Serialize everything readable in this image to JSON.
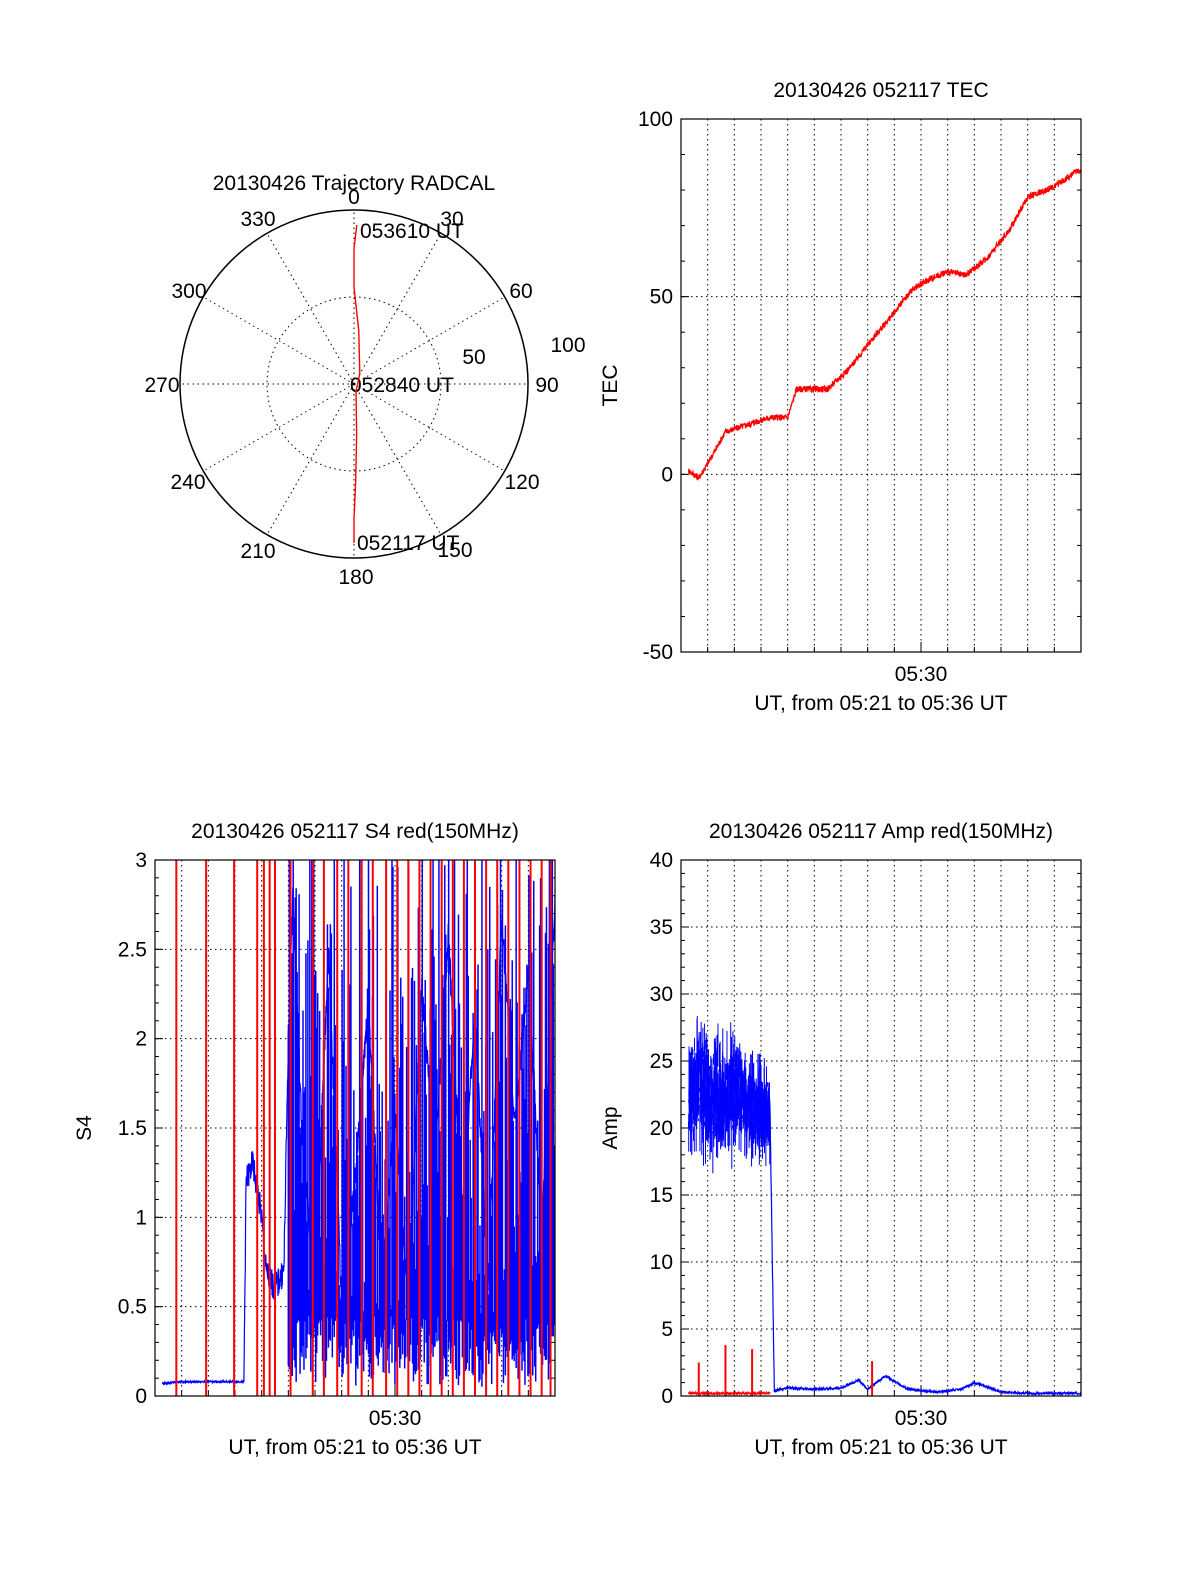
{
  "colors": {
    "red": "#ff0000",
    "blue": "#0000ff",
    "axis": "#000000"
  },
  "chart_data": [
    {
      "id": "trajectory",
      "type": "scatter",
      "projection": "polar",
      "title": "20130426 Trajectory RADCAL",
      "angle_labels": [
        "0",
        "30",
        "60",
        "90",
        "120",
        "150",
        "180",
        "210",
        "240",
        "270",
        "300",
        "330"
      ],
      "radius_labels": [
        "50",
        "100"
      ],
      "rlim": [
        0,
        100
      ],
      "annotations": [
        "053610 UT",
        "052840 UT",
        "052117 UT"
      ],
      "series": [
        {
          "color": "red",
          "points": [
            {
              "az": 1,
              "el": 8
            },
            {
              "az": 0,
              "el": 20
            },
            {
              "az": 0,
              "el": 40
            },
            {
              "az": 5,
              "el": 62
            },
            {
              "az": 30,
              "el": 84
            },
            {
              "az": 165,
              "el": 86
            },
            {
              "az": 177,
              "el": 64
            },
            {
              "az": 179,
              "el": 40
            },
            {
              "az": 180,
              "el": 20
            },
            {
              "az": 180,
              "el": 8
            }
          ]
        }
      ],
      "grid": true
    },
    {
      "id": "tec",
      "type": "line",
      "title": "20130426 052117 TEC",
      "ylabel": "TEC",
      "xlabel": "UT, from 05:21 to 05:36 UT",
      "xlim": [
        "05:21",
        "05:36"
      ],
      "ylim": [
        -50,
        100
      ],
      "yticks": [
        "-50",
        "0",
        "50",
        "100"
      ],
      "xticks": [
        "05:30"
      ],
      "grid": true,
      "series": [
        {
          "color": "red",
          "x": [
            "05:21:17",
            "05:21:40",
            "05:22:00",
            "05:22:40",
            "05:23:30",
            "05:24:20",
            "05:25:00",
            "05:25:20",
            "05:25:40",
            "05:26:30",
            "05:27:20",
            "05:28:10",
            "05:28:50",
            "05:29:40",
            "05:30:20",
            "05:31:00",
            "05:31:40",
            "05:32:30",
            "05:33:20",
            "05:34:00",
            "05:35:00",
            "05:36:00"
          ],
          "y": [
            1,
            -1,
            3,
            12,
            14,
            16,
            16,
            24,
            24,
            24,
            30,
            38,
            44,
            52,
            55,
            57,
            56,
            61,
            69,
            78,
            81,
            86
          ]
        }
      ]
    },
    {
      "id": "s4",
      "type": "line",
      "title": "20130426 052117 S4 red(150MHz)",
      "ylabel": "S4",
      "xlabel": "UT, from 05:21 to 05:36 UT",
      "xlim": [
        "05:21",
        "05:36"
      ],
      "ylim": [
        0,
        3
      ],
      "yticks": [
        "0",
        "0.5",
        "1",
        "1.5",
        "2",
        "2.5",
        "3"
      ],
      "xticks": [
        "05:30"
      ],
      "grid": true,
      "series": [
        {
          "color": "blue",
          "x": [
            "05:21:17",
            "05:22:00",
            "05:23:00",
            "05:24:20",
            "05:24:25",
            "05:24:40",
            "05:25:00",
            "05:25:10",
            "05:25:30",
            "05:25:50",
            "05:26:00",
            "05:26:10",
            "05:26:30",
            "05:27:00",
            "05:27:30",
            "05:28:00",
            "05:28:30",
            "05:29:00",
            "05:29:30",
            "05:30:00",
            "05:30:30",
            "05:31:00",
            "05:31:30",
            "05:32:00",
            "05:32:30",
            "05:33:00",
            "05:33:30",
            "05:34:00",
            "05:34:30",
            "05:35:00",
            "05:35:30",
            "05:36:00"
          ],
          "y": [
            0.07,
            0.08,
            0.08,
            0.08,
            1.2,
            1.3,
            1.0,
            0.7,
            0.6,
            0.7,
            2.0,
            2.8,
            1.5,
            0.6,
            2.5,
            0.5,
            1.2,
            2.2,
            0.6,
            1.6,
            0.5,
            2.3,
            1.3,
            2.6,
            1.0,
            2.1,
            0.6,
            2.7,
            1.5,
            2.4,
            0.9,
            2.8
          ]
        },
        {
          "color": "red",
          "spike_x": [
            "05:21:48",
            "05:22:55",
            "05:23:58",
            "05:24:50",
            "05:25:05",
            "05:25:18",
            "05:25:30",
            "05:26:05",
            "05:26:55",
            "05:27:20",
            "05:27:50",
            "05:28:15",
            "05:28:45",
            "05:29:10",
            "05:29:40",
            "05:30:05",
            "05:30:30",
            "05:30:55",
            "05:31:20",
            "05:31:45",
            "05:32:10",
            "05:32:35",
            "05:33:00",
            "05:33:25",
            "05:33:50",
            "05:34:15",
            "05:34:40",
            "05:35:05",
            "05:35:30",
            "05:35:50"
          ],
          "spike_y": [
            3,
            3,
            3,
            3,
            3,
            3,
            3,
            3,
            3,
            3,
            3,
            3,
            3,
            3,
            3,
            3,
            3,
            3,
            3,
            3,
            3,
            3,
            3,
            3,
            3,
            3,
            3,
            3,
            3,
            3
          ]
        }
      ]
    },
    {
      "id": "amp",
      "type": "line",
      "title": "20130426 052117 Amp red(150MHz)",
      "ylabel": "Amp",
      "xlabel": "UT, from 05:21 to 05:36 UT",
      "xlim": [
        "05:21",
        "05:36"
      ],
      "ylim": [
        0,
        40
      ],
      "yticks": [
        "0",
        "5",
        "10",
        "15",
        "20",
        "25",
        "30",
        "35",
        "40"
      ],
      "xticks": [
        "05:30"
      ],
      "grid": true,
      "series": [
        {
          "color": "blue",
          "x": [
            "05:21:17",
            "05:21:40",
            "05:22:10",
            "05:22:40",
            "05:23:10",
            "05:23:40",
            "05:24:10",
            "05:24:20",
            "05:24:30",
            "05:25:00",
            "05:26:00",
            "05:27:00",
            "05:27:40",
            "05:28:00",
            "05:28:40",
            "05:29:30",
            "05:30:30",
            "05:31:30",
            "05:32:00",
            "05:33:00",
            "05:34:00",
            "05:35:00",
            "05:36:00"
          ],
          "y": [
            22,
            23,
            22,
            21,
            22,
            21,
            20,
            22,
            0.4,
            0.6,
            0.5,
            0.6,
            1.2,
            0.5,
            1.5,
            0.5,
            0.3,
            0.5,
            1.0,
            0.3,
            0.2,
            0.2,
            0.2
          ],
          "band_low": [
            16,
            17,
            16,
            16,
            17,
            17,
            16,
            17
          ],
          "band_high": [
            29,
            30,
            28,
            28,
            29,
            27,
            26,
            26
          ]
        },
        {
          "color": "red",
          "x": [
            "05:21:17",
            "05:24:20"
          ],
          "y": [
            0.2,
            0.2
          ],
          "spike_x": [
            "05:21:40",
            "05:22:40",
            "05:23:40",
            "05:28:10"
          ],
          "spike_y": [
            2.5,
            3.8,
            3.5,
            2.6
          ]
        }
      ]
    }
  ]
}
